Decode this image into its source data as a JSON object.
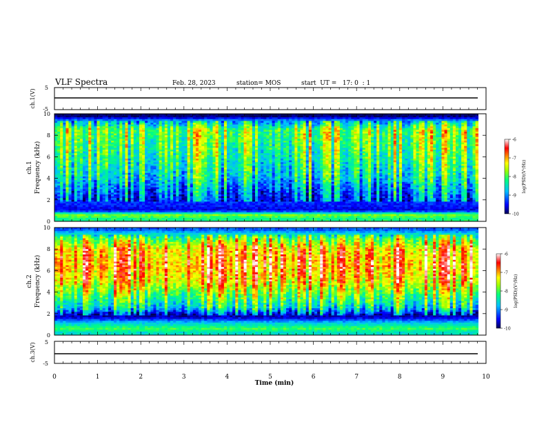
{
  "header": {
    "title": "VLF Spectra",
    "date": "Feb. 28, 2023",
    "station": "station= MOS",
    "start": "start  UT =   17: 0  : 1"
  },
  "chart_data": [
    {
      "type": "line",
      "id": "ch1-voltage",
      "ylabel": "ch.1(V)",
      "ylim": [
        -5,
        5
      ],
      "yticks": [
        5,
        -5
      ],
      "xlim": [
        0,
        10
      ],
      "x": [
        0,
        9.82
      ],
      "values": [
        -1.8,
        -1.8
      ]
    },
    {
      "type": "heatmap",
      "id": "ch1-spectrogram",
      "ylabel": "ch.1\nFrequency (kHz)",
      "ylim": [
        0,
        10
      ],
      "yticks": [
        0,
        2,
        4,
        6,
        8,
        10
      ],
      "xlim": [
        0,
        10
      ],
      "data_xmax": 9.82,
      "colorbar": {
        "label": "log(PSD)(V²/Hz)",
        "range": [
          -10,
          -6
        ],
        "ticks": [
          -6,
          -7,
          -8,
          -9,
          -10
        ]
      },
      "profile": [
        {
          "freq_khz": 0.25,
          "log_psd": -8.2
        },
        {
          "freq_khz": 0.6,
          "log_psd": -7.8
        },
        {
          "freq_khz": 1.0,
          "log_psd": -9.6
        },
        {
          "freq_khz": 1.6,
          "log_psd": -9.4
        },
        {
          "freq_khz": 2.5,
          "log_psd": -9.2
        },
        {
          "freq_khz": 4.0,
          "log_psd": -8.6
        },
        {
          "freq_khz": 6.0,
          "log_psd": -8.2
        },
        {
          "freq_khz": 7.5,
          "log_psd": -8.0
        },
        {
          "freq_khz": 8.5,
          "log_psd": -7.9
        },
        {
          "freq_khz": 9.3,
          "log_psd": -8.8
        },
        {
          "freq_khz": 9.8,
          "log_psd": -10.0
        }
      ]
    },
    {
      "type": "heatmap",
      "id": "ch2-spectrogram",
      "ylabel": "ch.2\nFrequency (kHz)",
      "ylim": [
        0,
        10
      ],
      "yticks": [
        0,
        2,
        4,
        6,
        8,
        10
      ],
      "xlim": [
        0,
        10
      ],
      "data_xmax": 9.82,
      "colorbar": {
        "label": "log(PSD)(V²/Hz)",
        "range": [
          -10,
          -6
        ],
        "ticks": [
          -6,
          -7,
          -8,
          -9,
          -10
        ]
      },
      "profile": [
        {
          "freq_khz": 0.25,
          "log_psd": -8.5
        },
        {
          "freq_khz": 0.6,
          "log_psd": -8.0
        },
        {
          "freq_khz": 1.2,
          "log_psd": -8.8
        },
        {
          "freq_khz": 1.7,
          "log_psd": -9.8
        },
        {
          "freq_khz": 2.5,
          "log_psd": -8.6
        },
        {
          "freq_khz": 3.5,
          "log_psd": -8.0
        },
        {
          "freq_khz": 5.0,
          "log_psd": -7.2
        },
        {
          "freq_khz": 6.5,
          "log_psd": -6.9
        },
        {
          "freq_khz": 8.0,
          "log_psd": -7.1
        },
        {
          "freq_khz": 9.0,
          "log_psd": -7.9
        },
        {
          "freq_khz": 9.8,
          "log_psd": -9.2
        }
      ]
    },
    {
      "type": "line",
      "id": "ch3-voltage",
      "ylabel": "ch.3(V)",
      "ylim": [
        -5,
        5
      ],
      "yticks": [
        5,
        -5
      ],
      "xlim": [
        0,
        10
      ],
      "x": [
        0,
        9.82
      ],
      "values": [
        -1.8,
        -1.8
      ]
    }
  ],
  "xaxis": {
    "label": "Time (min)",
    "ticks": [
      0,
      1,
      2,
      3,
      4,
      5,
      6,
      7,
      8,
      9,
      10
    ]
  },
  "colors": {
    "scale": [
      "#000066",
      "#0000ff",
      "#00ccff",
      "#00ff66",
      "#ffff00",
      "#ff6600",
      "#ff0000",
      "#ffffff"
    ]
  }
}
